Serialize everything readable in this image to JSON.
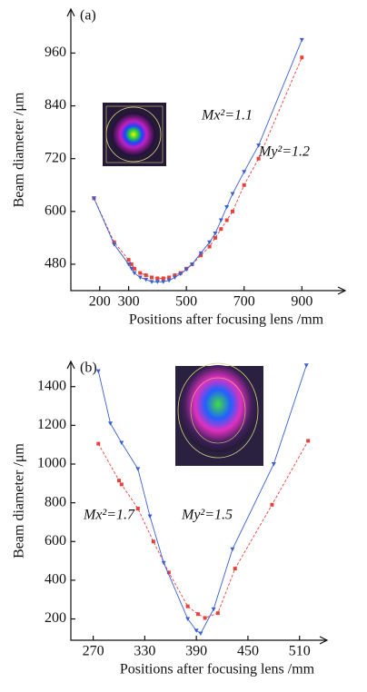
{
  "chart_data": [
    {
      "type": "line",
      "panel_label": "(a)",
      "xlabel": "Positions after focusing lens /mm",
      "ylabel": "Beam diameter /μm",
      "xlim": [
        100,
        1050
      ],
      "xticks": [
        200,
        300,
        500,
        700,
        900
      ],
      "ylim": [
        420,
        1060
      ],
      "yticks": [
        480,
        600,
        720,
        840,
        960
      ],
      "series": [
        {
          "name": "Mx²=1.1",
          "color": "#e8403a",
          "marker": "square",
          "x": [
            180,
            250,
            300,
            310,
            320,
            340,
            360,
            380,
            400,
            420,
            440,
            460,
            480,
            500,
            520,
            550,
            580,
            600,
            620,
            640,
            660,
            700,
            750,
            900
          ],
          "values": [
            630,
            530,
            490,
            480,
            470,
            460,
            455,
            450,
            448,
            448,
            450,
            455,
            460,
            470,
            480,
            500,
            520,
            540,
            560,
            580,
            600,
            660,
            720,
            950
          ]
        },
        {
          "name": "My²=1.2",
          "color": "#3a5fd0",
          "marker": "triangle",
          "x": [
            180,
            250,
            300,
            310,
            320,
            340,
            360,
            380,
            400,
            420,
            440,
            460,
            480,
            500,
            520,
            550,
            580,
            600,
            620,
            640,
            660,
            700,
            750,
            900
          ],
          "values": [
            630,
            525,
            480,
            470,
            460,
            450,
            445,
            440,
            440,
            440,
            443,
            450,
            458,
            468,
            480,
            505,
            530,
            550,
            580,
            610,
            640,
            690,
            750,
            990
          ]
        }
      ]
    },
    {
      "type": "line",
      "panel_label": "(b)",
      "xlabel": "Positions after focusing lens /mm",
      "ylabel": "Beam diameter /μm",
      "xlim": [
        244,
        542
      ],
      "xticks": [
        270,
        330,
        390,
        450,
        510
      ],
      "ylim": [
        90,
        1530
      ],
      "yticks": [
        200,
        400,
        600,
        800,
        1000,
        1200,
        1400
      ],
      "series": [
        {
          "name": "Mx²=1.7",
          "color": "#e8403a",
          "marker": "square",
          "x": [
            276,
            300,
            303,
            322,
            340,
            358,
            380,
            392,
            400,
            415,
            435,
            478,
            520
          ],
          "values": [
            1105,
            915,
            895,
            770,
            600,
            440,
            265,
            225,
            205,
            230,
            460,
            790,
            1120
          ]
        },
        {
          "name": "My²=1.5",
          "color": "#3a5fd0",
          "marker": "triangle",
          "x": [
            276,
            290,
            303,
            322,
            336,
            352,
            380,
            390,
            395,
            410,
            432,
            480,
            518
          ],
          "values": [
            1480,
            1210,
            1110,
            975,
            730,
            490,
            200,
            140,
            125,
            250,
            560,
            1000,
            1510
          ]
        }
      ]
    }
  ]
}
